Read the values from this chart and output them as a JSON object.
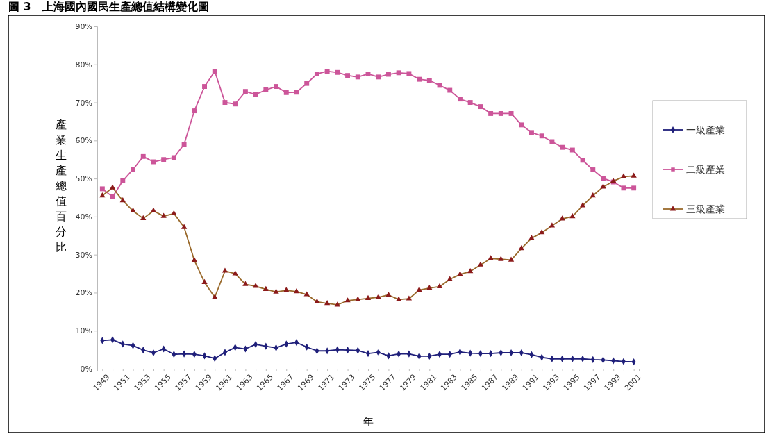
{
  "chart_data": {
    "type": "line",
    "title": "圖 3　上海國內國民生產總值結構變化圖",
    "xlabel": "年",
    "ylabel": "產業生產總值百分比",
    "categories": [
      "1949",
      null,
      "1951",
      null,
      "1953",
      null,
      "1955",
      null,
      "1957",
      null,
      "1959",
      null,
      "1961",
      null,
      "1963",
      null,
      "1965",
      null,
      "1967",
      null,
      "1969",
      null,
      "1971",
      null,
      "1973",
      null,
      "1975",
      null,
      "1977",
      null,
      "1979",
      null,
      "1981",
      null,
      "1983",
      null,
      "1985",
      null,
      "1987",
      null,
      "1989",
      null,
      "1991",
      null,
      "1993",
      null,
      "1995",
      null,
      "1997",
      null,
      "1999",
      null,
      "2001"
    ],
    "series": [
      {
        "name": "一級產業",
        "color": "#1f1f7a",
        "marker": "diamond",
        "values": [
          7.4,
          7.6,
          6.5,
          6.1,
          4.9,
          4.2,
          5.2,
          3.8,
          3.9,
          3.8,
          3.4,
          2.7,
          4.3,
          5.6,
          5.2,
          6.4,
          5.9,
          5.5,
          6.5,
          6.9,
          5.7,
          4.7,
          4.7,
          5.0,
          4.9,
          4.8,
          4.0,
          4.3,
          3.4,
          3.9,
          3.9,
          3.3,
          3.3,
          3.8,
          3.8,
          4.4,
          4.1,
          4.0,
          4.0,
          4.2,
          4.2,
          4.2,
          3.7,
          3.0,
          2.6,
          2.6,
          2.6,
          2.6,
          2.4,
          2.3,
          2.1,
          1.9,
          1.8
        ]
      },
      {
        "name": "二級產業",
        "color": "#cc5599",
        "marker": "square",
        "values": [
          47.3,
          45.2,
          49.4,
          52.4,
          55.8,
          54.4,
          55.0,
          55.5,
          59.0,
          67.8,
          74.2,
          78.2,
          70.0,
          69.6,
          72.9,
          72.1,
          73.3,
          74.2,
          72.6,
          72.7,
          75.0,
          77.5,
          78.2,
          77.9,
          77.1,
          76.7,
          77.5,
          76.7,
          77.4,
          77.8,
          77.6,
          76.1,
          75.8,
          74.5,
          73.2,
          70.9,
          70.0,
          68.9,
          67.1,
          67.1,
          67.1,
          64.1,
          62.1,
          61.2,
          59.7,
          58.2,
          57.5,
          54.8,
          52.3,
          50.1,
          49.1,
          47.5,
          47.5
        ]
      },
      {
        "name": "三級產業",
        "color": "#9a6a2c",
        "marker": "triangle",
        "values": [
          45.5,
          47.6,
          44.2,
          41.5,
          39.5,
          41.5,
          40.1,
          40.8,
          37.2,
          28.5,
          22.7,
          18.8,
          25.7,
          25.0,
          22.2,
          21.7,
          20.9,
          20.2,
          20.6,
          20.3,
          19.5,
          17.6,
          17.2,
          16.8,
          17.9,
          18.2,
          18.5,
          18.8,
          19.4,
          18.2,
          18.4,
          20.7,
          21.2,
          21.6,
          23.5,
          24.8,
          25.6,
          27.3,
          29.0,
          28.8,
          28.6,
          31.6,
          34.3,
          35.8,
          37.6,
          39.4,
          40.0,
          42.9,
          45.5,
          47.8,
          49.3,
          50.5,
          50.7
        ]
      }
    ],
    "ylim": [
      0,
      90
    ],
    "yticks": [
      {
        "value": 0,
        "label": "0%"
      },
      {
        "value": 10,
        "label": "10%"
      },
      {
        "value": 20,
        "label": "20%"
      },
      {
        "value": 30,
        "label": "30%"
      },
      {
        "value": 40,
        "label": "40%"
      },
      {
        "value": 50,
        "label": "50%"
      },
      {
        "value": 60,
        "label": "60%"
      },
      {
        "value": 70,
        "label": "70%"
      },
      {
        "value": 80,
        "label": "80%"
      },
      {
        "value": 90,
        "label": "90%"
      }
    ],
    "grid": false,
    "legend": "right",
    "line_style": "solid"
  }
}
